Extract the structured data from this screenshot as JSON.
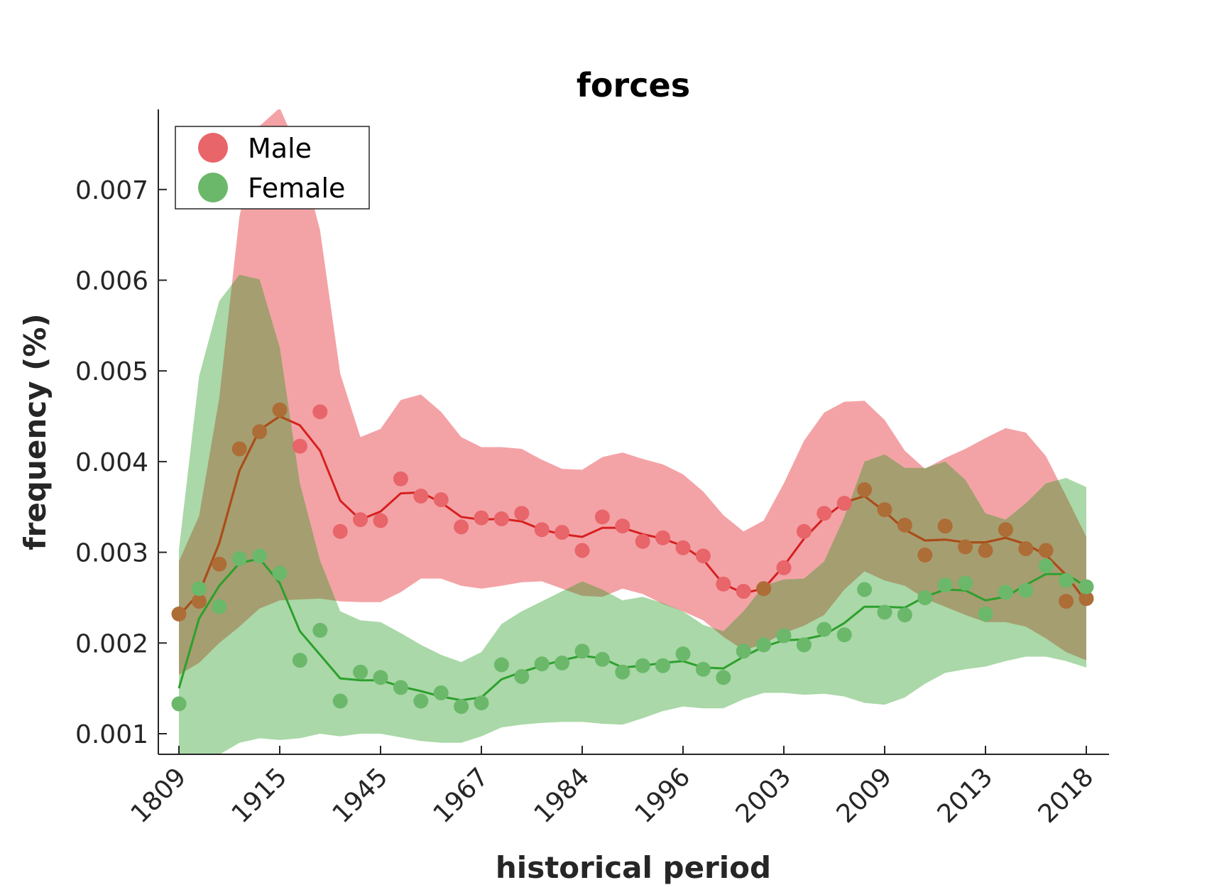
{
  "chart_data": {
    "type": "scatter",
    "title": "forces",
    "xlabel": "historical period",
    "ylabel": "frequency (%)",
    "ylim": [
      0.00072,
      0.00788
    ],
    "yticks": [
      0.001,
      0.002,
      0.003,
      0.004,
      0.005,
      0.006,
      0.007
    ],
    "ytick_labels": [
      "0.001",
      "0.002",
      "0.003",
      "0.004",
      "0.005",
      "0.006",
      "0.007"
    ],
    "x_tick_labels": [
      "1809",
      "1915",
      "1945",
      "1967",
      "1984",
      "1996",
      "2003",
      "2009",
      "2013",
      "2018"
    ],
    "x_tick_positions": [
      0,
      5,
      10,
      15,
      20,
      25,
      30,
      35,
      40,
      45
    ],
    "xlim": [
      -1,
      46
    ],
    "legend": {
      "position": "top-left",
      "entries": [
        "Male",
        "Female"
      ]
    },
    "colors": {
      "male_points": "#e8656a",
      "male_band": "#f3a3a6",
      "male_line": "#d62020",
      "female_points": "#6bb86b",
      "female_band": "#aad8a8",
      "female_line": "#2ca02c",
      "overlap_band": "#a59e70",
      "overlap_points": "#ad6d36",
      "overlap_line": "#a84e18"
    },
    "series": [
      {
        "name": "Male",
        "points": [
          0.00232,
          0.00246,
          0.00287,
          0.00414,
          0.00433,
          0.00457,
          0.00417,
          0.00455,
          0.00323,
          0.00336,
          0.00335,
          0.00381,
          0.00362,
          0.00358,
          0.00328,
          0.00338,
          0.00337,
          0.00343,
          0.00325,
          0.00322,
          0.00302,
          0.00339,
          0.00329,
          0.00312,
          0.00316,
          0.00305,
          0.00296,
          0.00265,
          0.00257,
          0.0026,
          0.00283,
          0.00323,
          0.00343,
          0.00354,
          0.00369,
          0.00347,
          0.0033,
          0.00297,
          0.00329,
          0.00306,
          0.00302,
          0.00325,
          0.00304,
          0.00302,
          0.00246,
          0.00249
        ],
        "smooth": [
          0.0023,
          0.00255,
          0.0031,
          0.0039,
          0.00435,
          0.0045,
          0.0044,
          0.00412,
          0.00357,
          0.00336,
          0.00345,
          0.00365,
          0.00366,
          0.00355,
          0.00339,
          0.00336,
          0.00337,
          0.00334,
          0.00325,
          0.0032,
          0.00317,
          0.00327,
          0.00327,
          0.0032,
          0.00315,
          0.00307,
          0.00292,
          0.00265,
          0.00255,
          0.0026,
          0.00285,
          0.00315,
          0.00338,
          0.00355,
          0.00362,
          0.00345,
          0.00325,
          0.00313,
          0.00314,
          0.00311,
          0.00311,
          0.00316,
          0.00309,
          0.00297,
          0.00275,
          0.00245
        ],
        "band_upper": [
          0.0029,
          0.0034,
          0.0047,
          0.0067,
          0.0077,
          0.0079,
          0.0074,
          0.00655,
          0.00497,
          0.00427,
          0.00436,
          0.00468,
          0.00474,
          0.00455,
          0.00427,
          0.00416,
          0.00416,
          0.00414,
          0.00402,
          0.00392,
          0.00391,
          0.00405,
          0.0041,
          0.00403,
          0.00397,
          0.00386,
          0.00367,
          0.00341,
          0.00323,
          0.00335,
          0.00376,
          0.00423,
          0.00454,
          0.00466,
          0.00467,
          0.00446,
          0.00412,
          0.00392,
          0.00404,
          0.00414,
          0.00426,
          0.00437,
          0.00432,
          0.00406,
          0.00362,
          0.00317
        ],
        "band_lower": [
          0.00165,
          0.00178,
          0.002,
          0.00218,
          0.00238,
          0.00247,
          0.00248,
          0.00249,
          0.00246,
          0.00245,
          0.00245,
          0.00256,
          0.00271,
          0.00271,
          0.00263,
          0.0026,
          0.00263,
          0.00267,
          0.00268,
          0.0026,
          0.00252,
          0.00251,
          0.0026,
          0.00254,
          0.00243,
          0.00235,
          0.00225,
          0.00207,
          0.00192,
          0.00199,
          0.00211,
          0.00219,
          0.00231,
          0.00259,
          0.00279,
          0.00269,
          0.00263,
          0.00249,
          0.0024,
          0.00231,
          0.00223,
          0.00223,
          0.00218,
          0.00205,
          0.0019,
          0.00181
        ]
      },
      {
        "name": "Female",
        "points": [
          0.00133,
          0.0026,
          0.0024,
          0.00293,
          0.00296,
          0.00277,
          0.00181,
          0.00214,
          0.00136,
          0.00168,
          0.00162,
          0.00151,
          0.00136,
          0.00145,
          0.0013,
          0.00134,
          0.00176,
          0.00163,
          0.00177,
          0.00178,
          0.00191,
          0.00182,
          0.00168,
          0.00175,
          0.00175,
          0.00188,
          0.00171,
          0.00162,
          0.00191,
          0.00198,
          0.00208,
          0.00198,
          0.00215,
          0.00209,
          0.00259,
          0.00234,
          0.00231,
          0.0025,
          0.00264,
          0.00266,
          0.00232,
          0.00256,
          0.00258,
          0.00285,
          0.00269,
          0.00262
        ],
        "smooth": [
          0.0015,
          0.00227,
          0.00263,
          0.00288,
          0.00293,
          0.00266,
          0.00213,
          0.00187,
          0.00161,
          0.00159,
          0.00159,
          0.00152,
          0.00147,
          0.00141,
          0.00137,
          0.0014,
          0.0016,
          0.00168,
          0.00175,
          0.00181,
          0.00186,
          0.00183,
          0.00173,
          0.00175,
          0.00178,
          0.0018,
          0.00173,
          0.00172,
          0.00185,
          0.00196,
          0.00203,
          0.00204,
          0.00209,
          0.00222,
          0.0024,
          0.0024,
          0.00239,
          0.00251,
          0.00259,
          0.00258,
          0.00247,
          0.00251,
          0.00264,
          0.00276,
          0.00276,
          0.00262
        ],
        "band_upper": [
          0.00303,
          0.00494,
          0.00577,
          0.00606,
          0.00601,
          0.00526,
          0.00376,
          0.00291,
          0.00235,
          0.00225,
          0.00223,
          0.00211,
          0.00198,
          0.00187,
          0.00179,
          0.0019,
          0.00221,
          0.00235,
          0.00246,
          0.00257,
          0.00268,
          0.00259,
          0.00247,
          0.00251,
          0.00244,
          0.00235,
          0.0022,
          0.00213,
          0.00235,
          0.00263,
          0.0027,
          0.00271,
          0.0029,
          0.00339,
          0.004,
          0.00408,
          0.00393,
          0.00393,
          0.004,
          0.0038,
          0.00343,
          0.00336,
          0.00354,
          0.00376,
          0.00382,
          0.00372
        ],
        "band_lower": [
          0.0007,
          0.0007,
          0.00077,
          0.0009,
          0.00095,
          0.00093,
          0.00095,
          0.001,
          0.00097,
          0.001,
          0.001,
          0.00096,
          0.00092,
          0.0009,
          0.0009,
          0.00097,
          0.00107,
          0.0011,
          0.00112,
          0.00113,
          0.00113,
          0.00111,
          0.0011,
          0.00117,
          0.00125,
          0.0013,
          0.00128,
          0.00128,
          0.00138,
          0.00145,
          0.00145,
          0.00143,
          0.00144,
          0.00141,
          0.00134,
          0.00132,
          0.0014,
          0.00155,
          0.00167,
          0.00171,
          0.00174,
          0.0018,
          0.00185,
          0.00185,
          0.0018,
          0.00173
        ]
      }
    ]
  }
}
